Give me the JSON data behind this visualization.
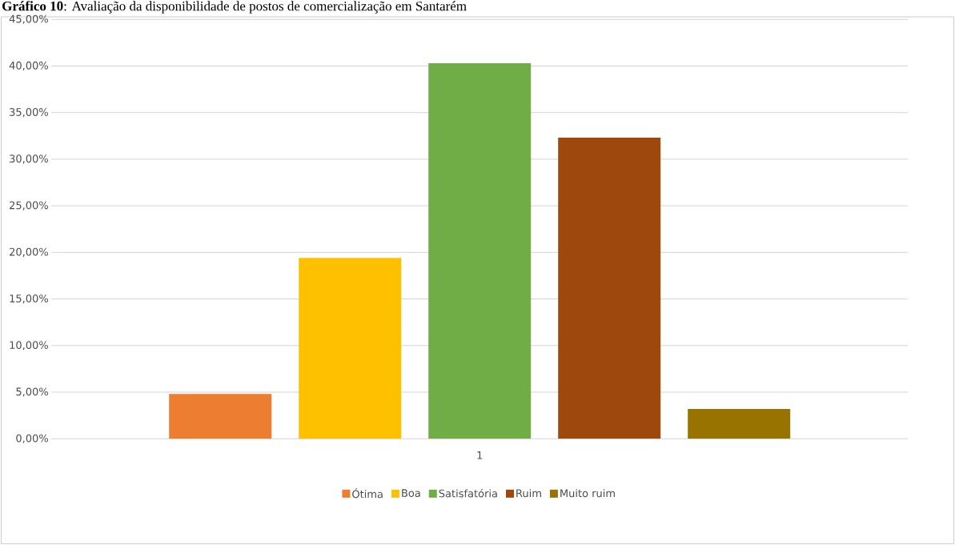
{
  "chart_data": {
    "type": "bar",
    "title": "**Gráfico 10**: Avaliação da disponibilidade de postos de comercialização em Santarém",
    "categories": [
      "1"
    ],
    "series": [
      {
        "name": "Ótima",
        "color": "#ed7d31",
        "values": [
          4.8
        ]
      },
      {
        "name": "Boa",
        "color": "#ffc000",
        "values": [
          19.4
        ]
      },
      {
        "name": "Satisfatória",
        "color": "#70ad47",
        "values": [
          40.3
        ]
      },
      {
        "name": "Ruim",
        "color": "#9e480e",
        "values": [
          32.3
        ]
      },
      {
        "name": "Muito ruim",
        "color": "#997300",
        "values": [
          3.2
        ]
      }
    ],
    "ylim": [
      0,
      45
    ],
    "yticks": [
      {
        "value": 0,
        "label": "0,00%"
      },
      {
        "value": 5,
        "label": "5,00%"
      },
      {
        "value": 10,
        "label": "10,00%"
      },
      {
        "value": 15,
        "label": "15,00%"
      },
      {
        "value": 20,
        "label": "20,00%"
      },
      {
        "value": 25,
        "label": "25,00%"
      },
      {
        "value": 30,
        "label": "30,00%"
      },
      {
        "value": 35,
        "label": "35,00%"
      },
      {
        "value": 40,
        "label": "40,00%"
      },
      {
        "value": 45,
        "label": "45,00%"
      }
    ],
    "grid": "y",
    "legend": "bottom"
  }
}
